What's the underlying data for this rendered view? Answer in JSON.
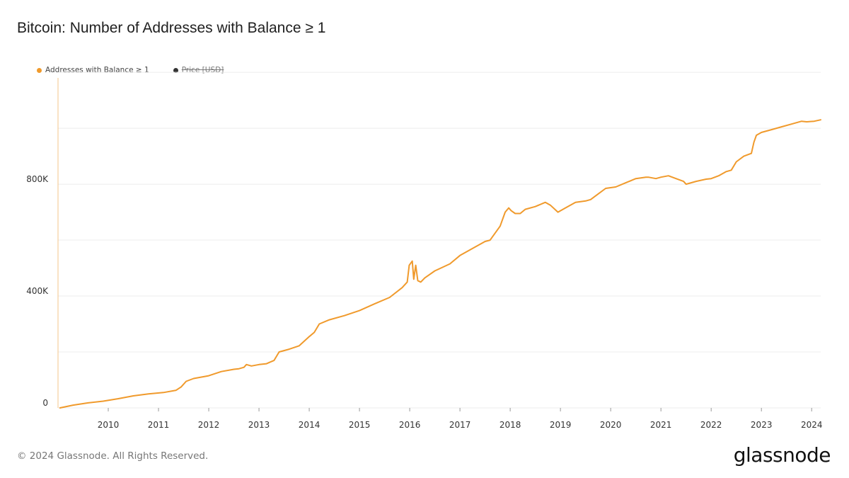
{
  "title": "Bitcoin: Number of Addresses with Balance ≥ 1",
  "legend": [
    {
      "label": "Addresses with Balance ≥ 1",
      "color": "#f09a2c",
      "active": true
    },
    {
      "label": "Price [USD]",
      "color": "#333333",
      "active": false
    }
  ],
  "footer": "© 2024 Glassnode. All Rights Reserved.",
  "brand": "glassnode",
  "chart_data": {
    "type": "line",
    "title": "Bitcoin: Number of Addresses with Balance ≥ 1",
    "xlim": [
      2009.0,
      2024.18
    ],
    "ylim": [
      0,
      1180000
    ],
    "x_ticks": [
      2010,
      2011,
      2012,
      2013,
      2014,
      2015,
      2016,
      2017,
      2018,
      2019,
      2020,
      2021,
      2022,
      2023,
      2024
    ],
    "x_tick_labels": [
      "2010",
      "2011",
      "2012",
      "2013",
      "2014",
      "2015",
      "2016",
      "2017",
      "2018",
      "2019",
      "2020",
      "2021",
      "2022",
      "2023",
      "2024"
    ],
    "y_ticks": [
      0,
      400000,
      800000
    ],
    "y_tick_labels": [
      "0",
      "400K",
      "800K"
    ],
    "y_gridlines": [
      0,
      200000,
      400000,
      600000,
      800000,
      1000000,
      1200000
    ],
    "grid": true,
    "legend_position": "top-left",
    "series": [
      {
        "name": "Addresses with Balance ≥ 1",
        "color": "#f09a2c",
        "x": [
          2009.04,
          2009.3,
          2009.6,
          2009.9,
          2010.2,
          2010.5,
          2010.8,
          2011.1,
          2011.35,
          2011.45,
          2011.55,
          2011.7,
          2012.0,
          2012.25,
          2012.5,
          2012.6,
          2012.7,
          2012.75,
          2012.85,
          2013.0,
          2013.15,
          2013.3,
          2013.4,
          2013.6,
          2013.8,
          2014.0,
          2014.1,
          2014.2,
          2014.4,
          2014.7,
          2015.0,
          2015.3,
          2015.6,
          2015.85,
          2015.95,
          2015.99,
          2016.05,
          2016.08,
          2016.12,
          2016.16,
          2016.22,
          2016.3,
          2016.5,
          2016.8,
          2017.0,
          2017.3,
          2017.5,
          2017.6,
          2017.8,
          2017.9,
          2017.97,
          2018.02,
          2018.1,
          2018.2,
          2018.3,
          2018.5,
          2018.7,
          2018.8,
          2018.95,
          2019.1,
          2019.3,
          2019.5,
          2019.6,
          2019.75,
          2019.9,
          2020.1,
          2020.3,
          2020.5,
          2020.7,
          2020.75,
          2020.9,
          2021.0,
          2021.15,
          2021.3,
          2021.45,
          2021.5,
          2021.7,
          2021.9,
          2022.0,
          2022.15,
          2022.3,
          2022.4,
          2022.5,
          2022.65,
          2022.8,
          2022.85,
          2022.9,
          2023.0,
          2023.2,
          2023.4,
          2023.6,
          2023.8,
          2023.9,
          2024.05,
          2024.18
        ],
        "values": [
          0,
          10000,
          18000,
          24000,
          33000,
          43000,
          50000,
          55000,
          63000,
          75000,
          95000,
          105000,
          115000,
          130000,
          138000,
          140000,
          145000,
          155000,
          150000,
          155000,
          158000,
          170000,
          200000,
          210000,
          222000,
          255000,
          270000,
          300000,
          315000,
          330000,
          348000,
          372000,
          395000,
          430000,
          450000,
          510000,
          525000,
          460000,
          510000,
          455000,
          450000,
          465000,
          490000,
          515000,
          545000,
          575000,
          595000,
          600000,
          650000,
          700000,
          715000,
          705000,
          695000,
          695000,
          710000,
          720000,
          735000,
          725000,
          700000,
          715000,
          735000,
          740000,
          745000,
          765000,
          785000,
          790000,
          805000,
          820000,
          825000,
          825000,
          820000,
          825000,
          830000,
          820000,
          810000,
          800000,
          810000,
          818000,
          820000,
          830000,
          845000,
          850000,
          880000,
          900000,
          910000,
          950000,
          975000,
          985000,
          995000,
          1005000,
          1015000,
          1025000,
          1023000,
          1025000,
          1030000
        ]
      }
    ]
  }
}
